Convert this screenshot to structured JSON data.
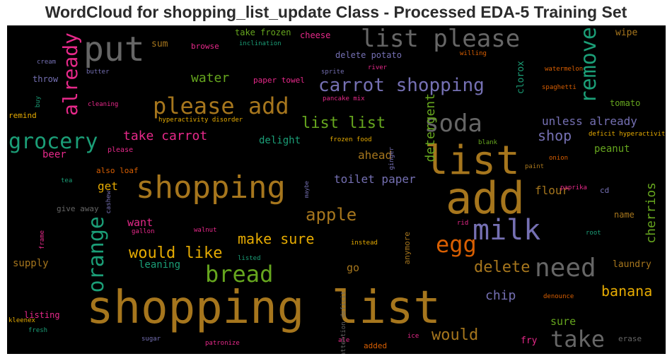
{
  "title": "WordCloud for shopping_list_update Class - Processed EDA-5 Training Set",
  "words": [
    {
      "text": "shopping list",
      "color": "#a6761d"
    },
    {
      "text": "add",
      "color": "#a6761d"
    },
    {
      "text": "list",
      "color": "#a6761d"
    },
    {
      "text": "shopping",
      "color": "#a6761d"
    },
    {
      "text": "milk",
      "color": "#7570b3"
    },
    {
      "text": "put",
      "color": "#666666"
    },
    {
      "text": "list please",
      "color": "#666666"
    },
    {
      "text": "please add",
      "color": "#a6761d"
    },
    {
      "text": "carrot shopping",
      "color": "#7570b3"
    },
    {
      "text": "soda",
      "color": "#666666"
    },
    {
      "text": "grocery",
      "color": "#1b9e77"
    },
    {
      "text": "already",
      "color": "#e7298a"
    },
    {
      "text": "remove",
      "color": "#1b9e77"
    },
    {
      "text": "orange",
      "color": "#1b9e77"
    },
    {
      "text": "need",
      "color": "#666666"
    },
    {
      "text": "egg",
      "color": "#d95f02"
    },
    {
      "text": "bread",
      "color": "#66a61e"
    },
    {
      "text": "take",
      "color": "#666666"
    },
    {
      "text": "list list",
      "color": "#66a61e"
    },
    {
      "text": "apple",
      "color": "#a6761d"
    },
    {
      "text": "would like",
      "color": "#e6ab02"
    },
    {
      "text": "make sure",
      "color": "#e6ab02"
    },
    {
      "text": "delete",
      "color": "#a6761d"
    },
    {
      "text": "banana",
      "color": "#e6ab02"
    },
    {
      "text": "take carrot",
      "color": "#e7298a"
    },
    {
      "text": "shop",
      "color": "#7570b3"
    },
    {
      "text": "would",
      "color": "#a6761d"
    },
    {
      "text": "toilet paper",
      "color": "#7570b3"
    },
    {
      "text": "water",
      "color": "#66a61e"
    },
    {
      "text": "unless already",
      "color": "#7570b3"
    },
    {
      "text": "detergent",
      "color": "#66a61e"
    },
    {
      "text": "cherrios",
      "color": "#66a61e"
    },
    {
      "text": "ahead",
      "color": "#a6761d"
    },
    {
      "text": "chip",
      "color": "#7570b3"
    },
    {
      "text": "flour",
      "color": "#a6761d"
    },
    {
      "text": "delight",
      "color": "#1b9e77"
    },
    {
      "text": "beer",
      "color": "#e7298a"
    },
    {
      "text": "peanut",
      "color": "#66a61e"
    },
    {
      "text": "get",
      "color": "#e6ab02"
    },
    {
      "text": "want",
      "color": "#e7298a"
    },
    {
      "text": "sure",
      "color": "#66a61e"
    },
    {
      "text": "laundry",
      "color": "#a6761d"
    },
    {
      "text": "go",
      "color": "#a6761d"
    },
    {
      "text": "leaning",
      "color": "#1b9e77"
    },
    {
      "text": "supply",
      "color": "#a6761d"
    },
    {
      "text": "fry",
      "color": "#e7298a"
    },
    {
      "text": "wipe",
      "color": "#a6761d"
    },
    {
      "text": "tomato",
      "color": "#66a61e"
    },
    {
      "text": "sum",
      "color": "#a6761d"
    },
    {
      "text": "throw",
      "color": "#7570b3"
    },
    {
      "text": "clorox",
      "color": "#1b9e77"
    },
    {
      "text": "take frozen",
      "color": "#66a61e"
    },
    {
      "text": "cheese",
      "color": "#e7298a"
    },
    {
      "text": "browse",
      "color": "#e7298a"
    },
    {
      "text": "delete potato",
      "color": "#7570b3"
    },
    {
      "text": "paper towel",
      "color": "#e7298a"
    },
    {
      "text": "listing",
      "color": "#e7298a"
    },
    {
      "text": "also loaf",
      "color": "#d95f02"
    },
    {
      "text": "give away",
      "color": "#666666"
    },
    {
      "text": "name",
      "color": "#a6761d"
    },
    {
      "text": "erase",
      "color": "#666666"
    },
    {
      "text": "remind",
      "color": "#e6ab02"
    },
    {
      "text": "please",
      "color": "#e7298a"
    },
    {
      "text": "cd",
      "color": "#7570b3"
    },
    {
      "text": "inclination",
      "color": "#1b9e77"
    },
    {
      "text": "willing",
      "color": "#d95f02"
    },
    {
      "text": "cream",
      "color": "#7570b3"
    },
    {
      "text": "butter",
      "color": "#7570b3"
    },
    {
      "text": "sprite",
      "color": "#7570b3"
    },
    {
      "text": "river",
      "color": "#e7298a"
    },
    {
      "text": "watermelon",
      "color": "#d95f02"
    },
    {
      "text": "spaghetti",
      "color": "#d95f02"
    },
    {
      "text": "cleaning",
      "color": "#e7298a"
    },
    {
      "text": "pancake mix",
      "color": "#e7298a"
    },
    {
      "text": "hyperactivity disorder",
      "color": "#e6ab02"
    },
    {
      "text": "deficit hyperactivity",
      "color": "#e6ab02"
    },
    {
      "text": "frozen food",
      "color": "#e6ab02"
    },
    {
      "text": "blank",
      "color": "#66a61e"
    },
    {
      "text": "tea",
      "color": "#1b9e77"
    },
    {
      "text": "paint",
      "color": "#a6761d"
    },
    {
      "text": "onion",
      "color": "#d95f02"
    },
    {
      "text": "paprika",
      "color": "#e7298a"
    },
    {
      "text": "walnut",
      "color": "#e7298a"
    },
    {
      "text": "gallon",
      "color": "#e7298a"
    },
    {
      "text": "rid",
      "color": "#e7298a"
    },
    {
      "text": "root",
      "color": "#1b9e77"
    },
    {
      "text": "instead",
      "color": "#e6ab02"
    },
    {
      "text": "listed",
      "color": "#1b9e77"
    },
    {
      "text": "denounce",
      "color": "#d95f02"
    },
    {
      "text": "kleenex",
      "color": "#e6ab02"
    },
    {
      "text": "fresh",
      "color": "#1b9e77"
    },
    {
      "text": "sugar",
      "color": "#7570b3"
    },
    {
      "text": "patronize",
      "color": "#e7298a"
    },
    {
      "text": "added",
      "color": "#d95f02"
    },
    {
      "text": "ice",
      "color": "#e7298a"
    },
    {
      "text": "ale",
      "color": "#e7298a"
    },
    {
      "text": "buy",
      "color": "#1b9e77"
    },
    {
      "text": "frame",
      "color": "#e7298a"
    },
    {
      "text": "cashew",
      "color": "#7570b3"
    },
    {
      "text": "maybe",
      "color": "#7570b3"
    },
    {
      "text": "ginger",
      "color": "#7570b3"
    },
    {
      "text": "anymore",
      "color": "#a6761d"
    },
    {
      "text": "attention deficit",
      "color": "#666666"
    }
  ]
}
